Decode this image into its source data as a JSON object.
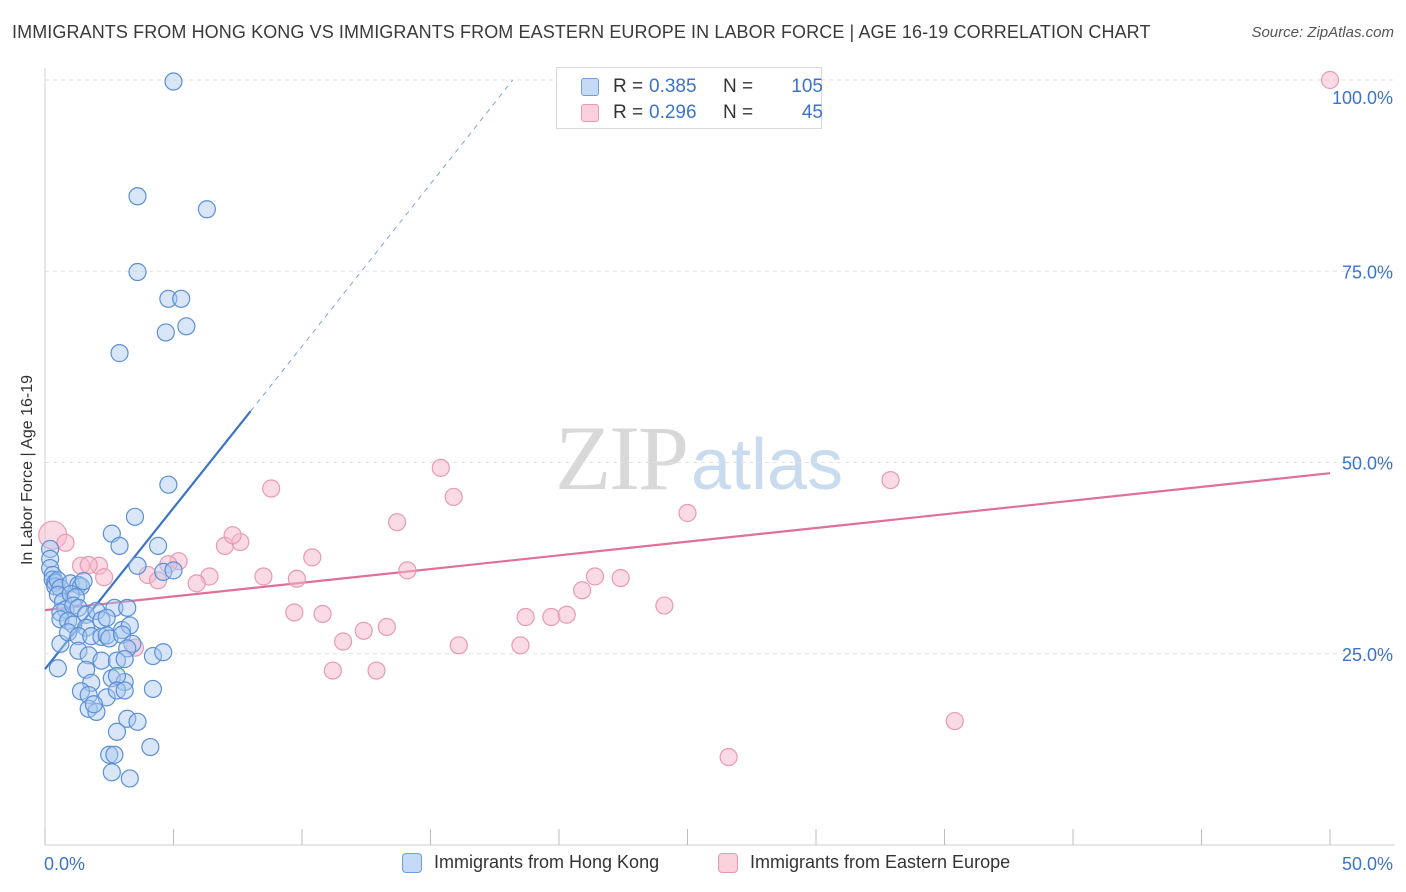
{
  "title": "IMMIGRANTS FROM HONG KONG VS IMMIGRANTS FROM EASTERN EUROPE IN LABOR FORCE | AGE 16-19 CORRELATION CHART",
  "source": "Source: ZipAtlas.com",
  "watermark": {
    "zip": "ZIP",
    "atlas": "atlas"
  },
  "colors": {
    "blue": "#3b74c7",
    "blue_fill": "#a9c8f0",
    "pink": "#e0709a",
    "pink_fill": "#f5b8cb",
    "grid": "#e3e3e3"
  },
  "legend": {
    "rows": [
      {
        "r_label": "R = ",
        "r_value": "0.385",
        "n_label": "N = ",
        "n_value": "105"
      },
      {
        "r_label": "R = ",
        "r_value": "0.296",
        "n_label": "N = ",
        "n_value": "45"
      }
    ]
  },
  "bottom_legend": {
    "hk": "Immigrants from Hong Kong",
    "ee": "Immigrants from Eastern Europe"
  },
  "chart_data": {
    "type": "scatter",
    "title": "IMMIGRANTS FROM HONG KONG VS IMMIGRANTS FROM EASTERN EUROPE IN LABOR FORCE | AGE 16-19 CORRELATION CHART",
    "xlabel": "",
    "ylabel": "In Labor Force | Age 16-19",
    "xlim": [
      0,
      50
    ],
    "ylim": [
      0,
      100
    ],
    "x_tick_labels": [
      "0.0%",
      "50.0%"
    ],
    "y_tick_labels": [
      "25.0%",
      "50.0%",
      "75.0%",
      "100.0%"
    ],
    "y_ticks": [
      25,
      50,
      75,
      100
    ],
    "series": [
      {
        "name": "Immigrants from Hong Kong",
        "color": "#3b74c7",
        "r": 0.385,
        "n": 105,
        "trend": {
          "x0": 0,
          "y0": 23,
          "x1": 8,
          "y1": 56.7,
          "dashed_to_x": 18.2,
          "dashed_to_y": 100
        },
        "points": [
          [
            5,
            99.8
          ],
          [
            3.6,
            84.8
          ],
          [
            6.3,
            83.1
          ],
          [
            3.6,
            74.9
          ],
          [
            4.8,
            71.4
          ],
          [
            5.3,
            71.4
          ],
          [
            5.5,
            67.8
          ],
          [
            4.7,
            67
          ],
          [
            2.9,
            64.3
          ],
          [
            4.8,
            47.1
          ],
          [
            3.5,
            42.9
          ],
          [
            2.6,
            40.7
          ],
          [
            2.9,
            39.1
          ],
          [
            4.4,
            39.1
          ],
          [
            4.6,
            35.7
          ],
          [
            5,
            35.9
          ],
          [
            3.6,
            36.5
          ],
          [
            0.2,
            38.7
          ],
          [
            0.2,
            37.4
          ],
          [
            0.2,
            36.2
          ],
          [
            0.3,
            35.3
          ],
          [
            0.3,
            34.7
          ],
          [
            0.4,
            34.3
          ],
          [
            0.4,
            33.8
          ],
          [
            0.5,
            34.6
          ],
          [
            0.6,
            33.6
          ],
          [
            1,
            34.2
          ],
          [
            1.3,
            34
          ],
          [
            1.4,
            33.8
          ],
          [
            1.5,
            34.5
          ],
          [
            0.5,
            32.7
          ],
          [
            0.7,
            31.8
          ],
          [
            0.8,
            30.8
          ],
          [
            1,
            32.8
          ],
          [
            1.2,
            32.4
          ],
          [
            0.6,
            30.4
          ],
          [
            1.1,
            31.3
          ],
          [
            1.3,
            31
          ],
          [
            1.6,
            30.1
          ],
          [
            2,
            30.6
          ],
          [
            2.7,
            31
          ],
          [
            3.2,
            31
          ],
          [
            0.6,
            29.5
          ],
          [
            0.9,
            29.3
          ],
          [
            1.1,
            28.8
          ],
          [
            1.6,
            28.4
          ],
          [
            2.2,
            29.4
          ],
          [
            2.4,
            29.7
          ],
          [
            3,
            28.1
          ],
          [
            3.3,
            28.7
          ],
          [
            0.6,
            26.3
          ],
          [
            0.9,
            27.8
          ],
          [
            1.3,
            27.3
          ],
          [
            1.8,
            27.3
          ],
          [
            2.2,
            27.2
          ],
          [
            2.4,
            27.4
          ],
          [
            2.5,
            27
          ],
          [
            3,
            27.5
          ],
          [
            3.4,
            26.3
          ],
          [
            3.2,
            25.7
          ],
          [
            1.3,
            25.4
          ],
          [
            1.7,
            24.8
          ],
          [
            2.2,
            24.1
          ],
          [
            2.8,
            24.1
          ],
          [
            3.1,
            24.3
          ],
          [
            4.2,
            24.7
          ],
          [
            4.6,
            25.2
          ],
          [
            0.5,
            23.1
          ],
          [
            1.6,
            22.9
          ],
          [
            2.6,
            21.8
          ],
          [
            3.1,
            21.3
          ],
          [
            2.8,
            22.1
          ],
          [
            1.8,
            21.2
          ],
          [
            1.4,
            20.1
          ],
          [
            1.7,
            19.6
          ],
          [
            2.4,
            19.3
          ],
          [
            2.8,
            20.2
          ],
          [
            3.1,
            20.2
          ],
          [
            4.2,
            20.4
          ],
          [
            1.7,
            17.8
          ],
          [
            2,
            17.4
          ],
          [
            1.9,
            18.4
          ],
          [
            3.2,
            16.5
          ],
          [
            3.6,
            16.1
          ],
          [
            2.8,
            14.8
          ],
          [
            4.1,
            12.8
          ],
          [
            2.5,
            11.8
          ],
          [
            2.7,
            11.8
          ],
          [
            2.6,
            9.5
          ],
          [
            3.3,
            8.7
          ]
        ]
      },
      {
        "name": "Immigrants from Eastern Europe",
        "color": "#e0709a",
        "r": 0.296,
        "n": 45,
        "trend": {
          "x0": 0,
          "y0": 30.7,
          "x1": 50,
          "y1": 48.6
        },
        "points": [
          [
            50,
            100
          ],
          [
            0.3,
            40.5
          ],
          [
            0.8,
            39.5
          ],
          [
            1.4,
            36.5
          ],
          [
            2.1,
            36.5
          ],
          [
            2.3,
            35
          ],
          [
            4,
            35.3
          ],
          [
            5.2,
            37.1
          ],
          [
            6.4,
            35.1
          ],
          [
            4.4,
            34.6
          ],
          [
            4.8,
            36.7
          ],
          [
            5.9,
            34.2
          ],
          [
            7.0,
            39.1
          ],
          [
            7.6,
            39.6
          ],
          [
            7.3,
            40.5
          ],
          [
            8.8,
            46.6
          ],
          [
            8.5,
            35.1
          ],
          [
            9.7,
            30.4
          ],
          [
            9.8,
            34.8
          ],
          [
            10.4,
            37.6
          ],
          [
            10.8,
            30.2
          ],
          [
            11.6,
            26.6
          ],
          [
            12.4,
            28
          ],
          [
            13.3,
            28.5
          ],
          [
            11.2,
            22.8
          ],
          [
            12.9,
            22.8
          ],
          [
            13.7,
            42.2
          ],
          [
            14.1,
            35.9
          ],
          [
            15.4,
            49.3
          ],
          [
            15.9,
            45.5
          ],
          [
            16.1,
            26.1
          ],
          [
            18.5,
            26.1
          ],
          [
            18.7,
            29.8
          ],
          [
            19.7,
            29.8
          ],
          [
            20.3,
            30.1
          ],
          [
            20.9,
            33.3
          ],
          [
            21.4,
            35.1
          ],
          [
            22.4,
            34.9
          ],
          [
            24.1,
            31.3
          ],
          [
            25.0,
            43.4
          ],
          [
            26.6,
            11.5
          ],
          [
            32.9,
            47.7
          ],
          [
            35.4,
            16.2
          ],
          [
            1.7,
            36.6
          ],
          [
            3.5,
            25.8
          ]
        ]
      }
    ]
  }
}
